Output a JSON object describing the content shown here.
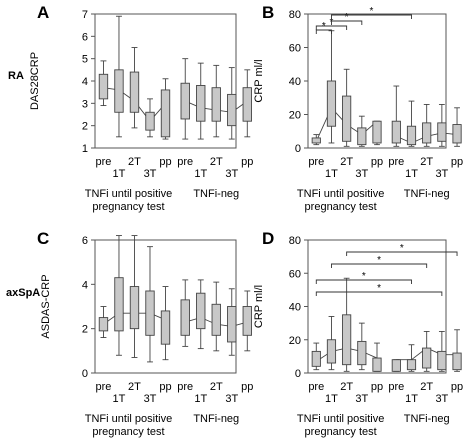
{
  "row_labels": [
    "RA",
    "axSpA"
  ],
  "chart_data": [
    {
      "panel": "A",
      "type": "box",
      "ylabel": "DAS28CRP",
      "ylim": [
        1,
        7
      ],
      "yticks": [
        1,
        2,
        3,
        4,
        5,
        6,
        7
      ],
      "grid": false,
      "x_top": [
        "pre",
        "2T",
        "pp",
        "pre",
        "2T",
        "pp"
      ],
      "x_bottom": [
        "1T",
        "3T",
        "1T",
        "3T"
      ],
      "groups": [
        "TNFi until positive pregnancy test",
        "TNFi-neg"
      ],
      "boxes": [
        {
          "group": 0,
          "category": "pre",
          "whisker_low": 2.9,
          "q1": 3.2,
          "median": 3.7,
          "q3": 4.3,
          "whisker_high": 4.9
        },
        {
          "group": 0,
          "category": "1T",
          "whisker_low": 1.5,
          "q1": 2.6,
          "median": 3.6,
          "q3": 4.5,
          "whisker_high": 6.9
        },
        {
          "group": 0,
          "category": "2T",
          "whisker_low": 1.9,
          "q1": 2.6,
          "median": 3.1,
          "q3": 4.4,
          "whisker_high": 5.5
        },
        {
          "group": 0,
          "category": "3T",
          "whisker_low": 1.5,
          "q1": 1.8,
          "median": 2.2,
          "q3": 2.6,
          "whisker_high": 3.2
        },
        {
          "group": 0,
          "category": "pp",
          "whisker_low": 1.4,
          "q1": 1.5,
          "median": 3.0,
          "q3": 3.6,
          "whisker_high": 4.1
        },
        {
          "group": 1,
          "category": "pre",
          "whisker_low": 1.4,
          "q1": 2.3,
          "median": 3.1,
          "q3": 3.9,
          "whisker_high": 5.0
        },
        {
          "group": 1,
          "category": "1T",
          "whisker_low": 1.4,
          "q1": 2.2,
          "median": 2.8,
          "q3": 3.8,
          "whisker_high": 4.8
        },
        {
          "group": 1,
          "category": "2T",
          "whisker_low": 1.5,
          "q1": 2.2,
          "median": 2.7,
          "q3": 3.7,
          "whisker_high": 4.7
        },
        {
          "group": 1,
          "category": "3T",
          "whisker_low": 1.4,
          "q1": 2.0,
          "median": 2.6,
          "q3": 3.4,
          "whisker_high": 4.6
        },
        {
          "group": 1,
          "category": "pp",
          "whisker_low": 1.5,
          "q1": 2.2,
          "median": 3.1,
          "q3": 3.7,
          "whisker_high": 4.5
        }
      ],
      "significance": []
    },
    {
      "panel": "B",
      "type": "box",
      "ylabel": "CRP  ml/l",
      "ylim": [
        0,
        80
      ],
      "yticks": [
        0,
        20,
        40,
        60,
        80
      ],
      "grid": false,
      "x_top": [
        "pre",
        "2T",
        "pp",
        "pre",
        "2T",
        "pp"
      ],
      "x_bottom": [
        "1T",
        "3T",
        "1T",
        "3T"
      ],
      "groups": [
        "TNFi until positive pregnancy test",
        "TNFi-neg"
      ],
      "boxes": [
        {
          "group": 0,
          "category": "pre",
          "whisker_low": 2,
          "q1": 3,
          "median": 4,
          "q3": 6,
          "whisker_high": 8
        },
        {
          "group": 0,
          "category": "1T",
          "whisker_low": 3,
          "q1": 13,
          "median": 24,
          "q3": 40,
          "whisker_high": 70
        },
        {
          "group": 0,
          "category": "2T",
          "whisker_low": 1,
          "q1": 4,
          "median": 14,
          "q3": 31,
          "whisker_high": 47
        },
        {
          "group": 0,
          "category": "3T",
          "whisker_low": 1,
          "q1": 2,
          "median": 8,
          "q3": 12,
          "whisker_high": 19
        },
        {
          "group": 0,
          "category": "pp",
          "whisker_low": 2,
          "q1": 3,
          "median": 16,
          "q3": 16,
          "whisker_high": 16
        },
        {
          "group": 1,
          "category": "pre",
          "whisker_low": 1,
          "q1": 3,
          "median": 7,
          "q3": 16,
          "whisker_high": 37
        },
        {
          "group": 1,
          "category": "1T",
          "whisker_low": 1,
          "q1": 2,
          "median": 3,
          "q3": 13,
          "whisker_high": 28
        },
        {
          "group": 1,
          "category": "2T",
          "whisker_low": 1,
          "q1": 3,
          "median": 7,
          "q3": 15,
          "whisker_high": 26
        },
        {
          "group": 1,
          "category": "3T",
          "whisker_low": 1,
          "q1": 4,
          "median": 9,
          "q3": 15,
          "whisker_high": 26
        },
        {
          "group": 1,
          "category": "pp",
          "whisker_low": 1,
          "q1": 3,
          "median": 8,
          "q3": 14,
          "whisker_high": 24
        }
      ],
      "significance": [
        {
          "from": 0,
          "to": 1,
          "label": "*"
        },
        {
          "from": 0,
          "to": 2,
          "label": "*"
        },
        {
          "from": 1,
          "to": 3,
          "label": "*"
        },
        {
          "from": 1,
          "to": 6,
          "label": "*"
        }
      ]
    },
    {
      "panel": "C",
      "type": "box",
      "ylabel": "ASDAS-CRP",
      "ylim": [
        0,
        6
      ],
      "yticks": [
        0,
        2,
        4,
        6
      ],
      "grid": false,
      "x_top": [
        "pre",
        "2T",
        "pp",
        "pre",
        "2T",
        "pp"
      ],
      "x_bottom": [
        "1T",
        "3T",
        "1T",
        "3T"
      ],
      "groups": [
        "TNFi until positive pregnancy test",
        "TNFi-neg"
      ],
      "boxes": [
        {
          "group": 0,
          "category": "pre",
          "whisker_low": 1.6,
          "q1": 1.9,
          "median": 2.2,
          "q3": 2.5,
          "whisker_high": 3.0
        },
        {
          "group": 0,
          "category": "1T",
          "whisker_low": 0.8,
          "q1": 1.9,
          "median": 2.7,
          "q3": 4.3,
          "whisker_high": 6.2
        },
        {
          "group": 0,
          "category": "2T",
          "whisker_low": 0.7,
          "q1": 2.0,
          "median": 2.7,
          "q3": 3.9,
          "whisker_high": 6.2
        },
        {
          "group": 0,
          "category": "3T",
          "whisker_low": 0.5,
          "q1": 1.7,
          "median": 2.7,
          "q3": 3.7,
          "whisker_high": 5.7
        },
        {
          "group": 0,
          "category": "pp",
          "whisker_low": 0.6,
          "q1": 1.3,
          "median": 2.4,
          "q3": 2.8,
          "whisker_high": 3.9
        },
        {
          "group": 1,
          "category": "pre",
          "whisker_low": 1.2,
          "q1": 1.7,
          "median": 2.3,
          "q3": 3.3,
          "whisker_high": 4.2
        },
        {
          "group": 1,
          "category": "1T",
          "whisker_low": 1.1,
          "q1": 2.0,
          "median": 2.5,
          "q3": 3.6,
          "whisker_high": 4.2
        },
        {
          "group": 1,
          "category": "2T",
          "whisker_low": 1.0,
          "q1": 1.7,
          "median": 2.2,
          "q3": 3.1,
          "whisker_high": 4.1
        },
        {
          "group": 1,
          "category": "3T",
          "whisker_low": 0.8,
          "q1": 1.4,
          "median": 2.1,
          "q3": 3.0,
          "whisker_high": 3.8
        },
        {
          "group": 1,
          "category": "pp",
          "whisker_low": 1.0,
          "q1": 1.7,
          "median": 2.3,
          "q3": 3.0,
          "whisker_high": 3.7
        }
      ],
      "significance": []
    },
    {
      "panel": "D",
      "type": "box",
      "ylabel": "CRP  ml/l",
      "ylim": [
        0,
        80
      ],
      "yticks": [
        0,
        20,
        40,
        60,
        80
      ],
      "grid": false,
      "x_top": [
        "pre",
        "2T",
        "pp",
        "pre",
        "2T",
        "pp"
      ],
      "x_bottom": [
        "1T",
        "3T",
        "1T",
        "3T"
      ],
      "groups": [
        "TNFi until positive pregnancy test",
        "TNFi-neg"
      ],
      "boxes": [
        {
          "group": 0,
          "category": "pre",
          "whisker_low": 2,
          "q1": 4,
          "median": 7,
          "q3": 13,
          "whisker_high": 18
        },
        {
          "group": 0,
          "category": "1T",
          "whisker_low": 2,
          "q1": 6,
          "median": 13,
          "q3": 20,
          "whisker_high": 34
        },
        {
          "group": 0,
          "category": "2T",
          "whisker_low": 1,
          "q1": 5,
          "median": 15,
          "q3": 35,
          "whisker_high": 57
        },
        {
          "group": 0,
          "category": "3T",
          "whisker_low": 2,
          "q1": 5,
          "median": 13,
          "q3": 19,
          "whisker_high": 30
        },
        {
          "group": 0,
          "category": "pp",
          "whisker_low": 1,
          "q1": 1,
          "median": 9,
          "q3": 9,
          "whisker_high": 18
        },
        {
          "group": 1,
          "category": "pre",
          "whisker_low": 1,
          "q1": 1,
          "median": 8,
          "q3": 8,
          "whisker_high": 8
        },
        {
          "group": 1,
          "category": "1T",
          "whisker_low": 1,
          "q1": 2,
          "median": 8,
          "q3": 8,
          "whisker_high": 17
        },
        {
          "group": 1,
          "category": "2T",
          "whisker_low": 1,
          "q1": 3,
          "median": 15,
          "q3": 15,
          "whisker_high": 25
        },
        {
          "group": 1,
          "category": "3T",
          "whisker_low": 1,
          "q1": 2,
          "median": 11,
          "q3": 13,
          "whisker_high": 25
        },
        {
          "group": 1,
          "category": "pp",
          "whisker_low": 1,
          "q1": 2,
          "median": 11,
          "q3": 12,
          "whisker_high": 26
        }
      ],
      "significance": [
        {
          "from": 0,
          "to": 6,
          "label": "*"
        },
        {
          "from": 1,
          "to": 7,
          "label": "*"
        },
        {
          "from": 0,
          "to": 8,
          "label": "*"
        },
        {
          "from": 2,
          "to": 9,
          "label": "*"
        }
      ]
    }
  ]
}
